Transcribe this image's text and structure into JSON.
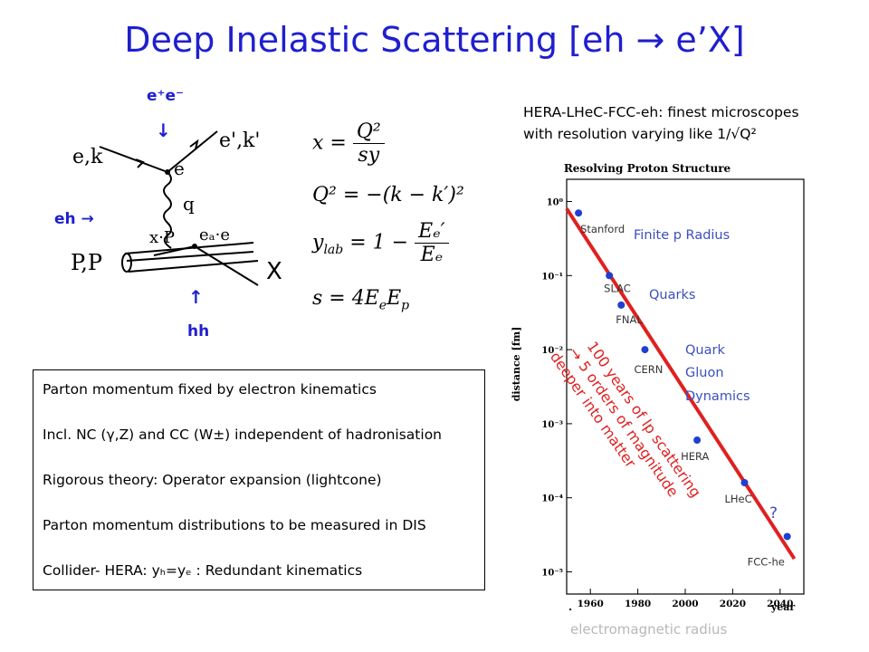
{
  "title": "Deep Inelastic Scattering [eh → e’X]",
  "diagram": {
    "ee_label": "e⁺e⁻",
    "ee_arrow": "↓",
    "eh_label": "eh →",
    "hh_arrow": "↑",
    "hh_label": "hh",
    "X_label": "X",
    "e_k_in": "e,k",
    "e_k_out": "e',k'",
    "e_vertex": "e",
    "q_label": "q",
    "xP_label": "x·P",
    "eq_e_label": "eₐ·e",
    "P_label": "P,P"
  },
  "formulas": {
    "x_lhs": "x =",
    "x_num": "Q²",
    "x_den": "sy",
    "q2": "Q² = −(k − k′)²",
    "y_lhs": "y",
    "y_sub": "lab",
    "y_mid": " = 1 − ",
    "y_num": "Eₑ′",
    "y_den": "Eₑ",
    "s_lhs": "s = 4E",
    "s_sub1": "e",
    "s_mid": "E",
    "s_sub2": "p"
  },
  "box": {
    "items": [
      "Parton momentum fixed by electron kinematics",
      "Incl. NC (γ,Z) and CC (W±) independent of hadronisation",
      "Rigorous theory: Operator expansion (lightcone)",
      "Parton momentum distributions to be measured in DIS",
      "Collider- HERA: yₕ=yₑ : Redundant kinematics"
    ]
  },
  "caption": {
    "line1": "HERA-LHeC-FCC-eh: finest microscopes",
    "line2": "with resolution varying like 1/√Q²"
  },
  "chart_data": {
    "type": "scatter",
    "title": "Resolving Proton Structure",
    "xlabel": "year",
    "ylabel": "distance [fm]",
    "x_ticks": [
      "1960",
      "1980",
      "2000",
      "2020",
      "2040"
    ],
    "y_ticks": [
      "10⁰",
      "10⁻¹",
      "10⁻²",
      "10⁻³",
      "10⁻⁴",
      "10⁻⁵"
    ],
    "xlim": [
      1950,
      2050
    ],
    "y_log10_range": [
      -5.3,
      0.3
    ],
    "points": [
      {
        "label": "Stanford",
        "x": 1955,
        "y": 0.7
      },
      {
        "label": "SLAC",
        "x": 1968,
        "y": 0.1
      },
      {
        "label": "FNAL",
        "x": 1973,
        "y": 0.04
      },
      {
        "label": "CERN",
        "x": 1983,
        "y": 0.01
      },
      {
        "label": "HERA",
        "x": 2005,
        "y": 0.0006
      },
      {
        "label": "LHeC",
        "x": 2025,
        "y": 0.00016
      },
      {
        "label": "FCC-he",
        "x": 2043,
        "y": 3e-05
      }
    ],
    "trend_line": {
      "x": [
        1950,
        2046
      ],
      "y": [
        0.8,
        1.5e-05
      ]
    },
    "annotations": {
      "finite_radius": "Finite p Radius",
      "quarks": "Quarks",
      "qgd_1": "Quark",
      "qgd_2": "Gluon",
      "qgd_3": "Dynamics",
      "question": "?",
      "red_1": "100 years of lp scattering",
      "red_2": "→ 5 orders of magnitude",
      "red_3": "deeper into matter",
      "dot_below": "."
    },
    "colors": {
      "line": "#e02020",
      "points": "#1f3fd0",
      "annotation": "#3a4fc0",
      "red_text": "#e02020"
    }
  },
  "footer": "electromagnetic radius"
}
